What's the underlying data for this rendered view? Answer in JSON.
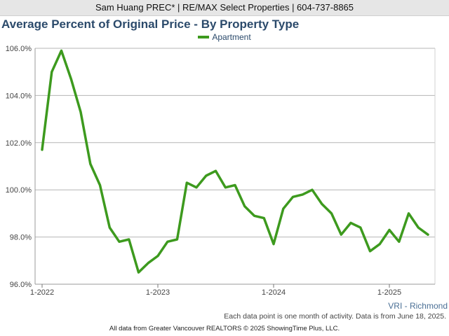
{
  "header": {
    "text": "Sam Huang PREC* | RE/MAX Select Properties | 604-737-8865"
  },
  "chart_data": {
    "type": "line",
    "title": "Average Percent of Original Price - By Property Type",
    "legend": {
      "placement": "top-center"
    },
    "series": [
      {
        "name": "Apartment",
        "color": "#3d9a1e",
        "values": [
          101.7,
          105.0,
          105.9,
          104.7,
          103.3,
          101.1,
          100.2,
          98.4,
          97.8,
          97.9,
          96.5,
          96.9,
          97.2,
          97.8,
          97.9,
          100.3,
          100.1,
          100.6,
          100.8,
          100.1,
          100.2,
          99.3,
          98.9,
          98.8,
          97.7,
          99.2,
          99.7,
          99.8,
          100.0,
          99.4,
          99.0,
          98.1,
          98.6,
          98.4,
          97.4,
          97.7,
          98.3,
          97.8,
          99.0,
          98.4,
          98.1
        ]
      }
    ],
    "x_start": "1-2022",
    "x_ticks": [
      "1-2022",
      "1-2023",
      "1-2024",
      "1-2025"
    ],
    "y_ticks": [
      "96.0%",
      "98.0%",
      "100.0%",
      "102.0%",
      "104.0%",
      "106.0%"
    ],
    "ylim": [
      96,
      106
    ],
    "grid": true
  },
  "region_label": "VRI - Richmond",
  "note": "Each data point is one month of activity. Data is from June 18, 2025.",
  "footer": "All data from Greater Vancouver REALTORS © 2025 ShowingTime Plus, LLC."
}
